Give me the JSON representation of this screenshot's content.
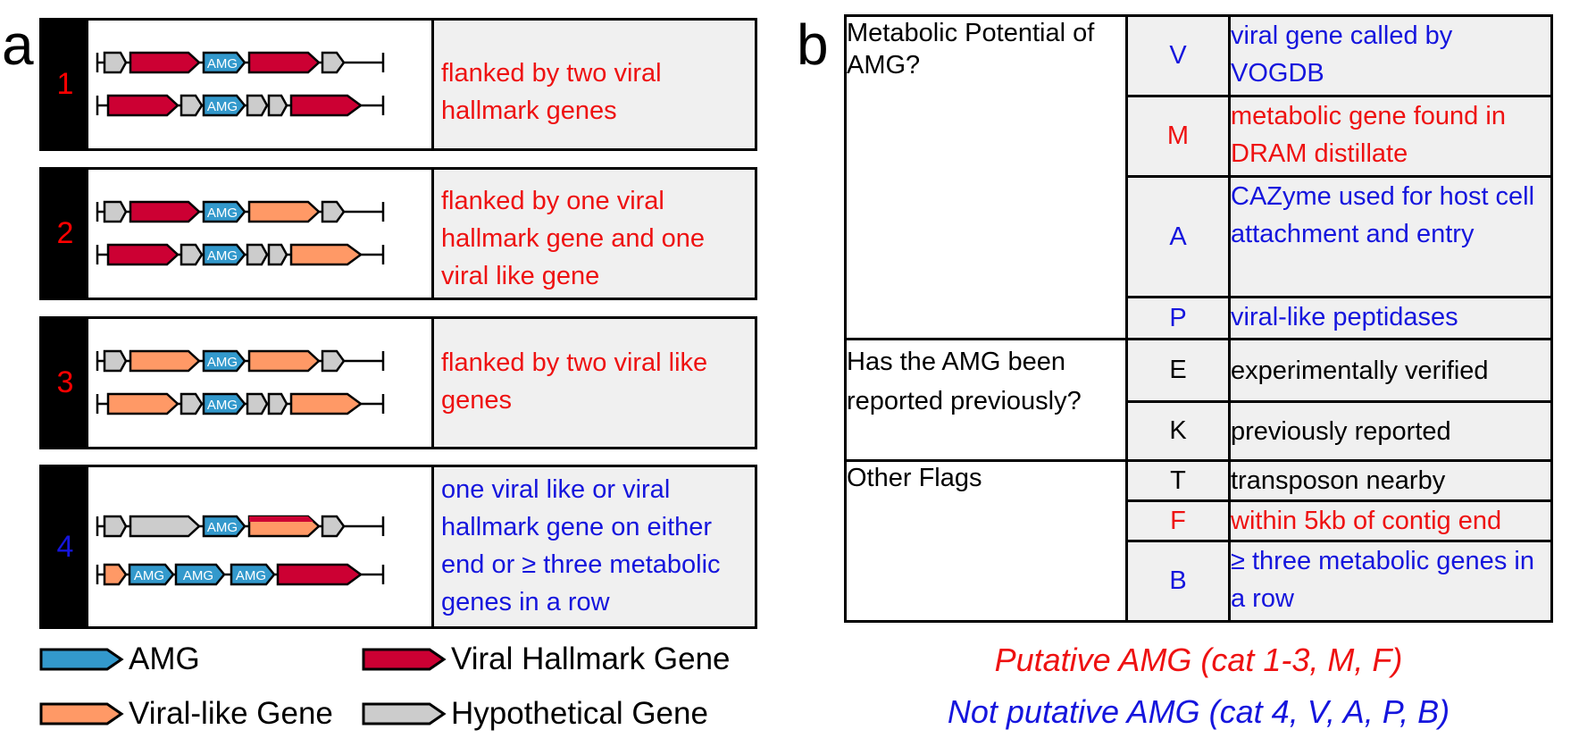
{
  "panel_a": {
    "letter": "a",
    "categories": [
      {
        "number": "1",
        "number_color": "#ee1111",
        "desc": "flanked by two viral hallmark genes",
        "desc_lines": [
          "flanked by two viral",
          "hallmark genes"
        ],
        "desc_color": "red"
      },
      {
        "number": "2",
        "number_color": "#ee1111",
        "desc": "flanked by one viral hallmark gene and one viral like gene",
        "desc_lines": [
          "flanked by one viral",
          "hallmark gene and one",
          "viral like gene"
        ],
        "desc_color": "red"
      },
      {
        "number": "3",
        "number_color": "#ee1111",
        "desc": "flanked by two viral like genes",
        "desc_lines": [
          "flanked by two viral like",
          "genes"
        ],
        "desc_color": "red"
      },
      {
        "number": "4",
        "number_color": "#1515dd",
        "desc": "one viral like or viral hallmark gene on either end or ≥ three metabolic genes in a row",
        "desc_lines": [
          "one viral like or viral",
          "hallmark gene on either",
          "end or ≥ three metabolic",
          "genes in a row"
        ],
        "desc_color": "blue"
      }
    ],
    "gene_label": "AMG",
    "legend": [
      {
        "label": "AMG",
        "color": "#3399cc"
      },
      {
        "label": "Viral Hallmark Gene",
        "color": "#cc0033"
      },
      {
        "label": "Viral-like Gene",
        "color": "#ff9966"
      },
      {
        "label": "Hypothetical Gene",
        "color": "#cccccc"
      }
    ]
  },
  "panel_b": {
    "letter": "b",
    "groups": [
      {
        "question": "Metabolic Potential of AMG?",
        "rows": [
          {
            "code": "V",
            "meaning": "viral gene called by VOGDB",
            "color": "blue"
          },
          {
            "code": "M",
            "meaning": "metabolic gene found in DRAM distillate",
            "color": "red"
          },
          {
            "code": "A",
            "meaning": "CAZyme used for host cell attachment and entry",
            "color": "blue"
          },
          {
            "code": "P",
            "meaning": "viral-like peptidases",
            "color": "blue"
          }
        ]
      },
      {
        "question": "Has the AMG been reported previously?",
        "rows": [
          {
            "code": "E",
            "meaning": "experimentally verified",
            "color": "black"
          },
          {
            "code": "K",
            "meaning": "previously reported",
            "color": "black"
          }
        ]
      },
      {
        "question": "Other Flags",
        "rows": [
          {
            "code": "T",
            "meaning": "transposon nearby",
            "color": "black"
          },
          {
            "code": "F",
            "meaning": "within 5kb of contig end",
            "color": "red"
          },
          {
            "code": "B",
            "meaning": "≥ three metabolic genes in a row",
            "color": "blue"
          }
        ]
      }
    ],
    "summary_putative": "Putative AMG (cat 1-3, M, F)",
    "summary_not_putative": "Not putative AMG (cat 4, V, A, P, B)",
    "summary_colors": {
      "putative": "#ee1111",
      "not_putative": "#1515dd"
    }
  }
}
